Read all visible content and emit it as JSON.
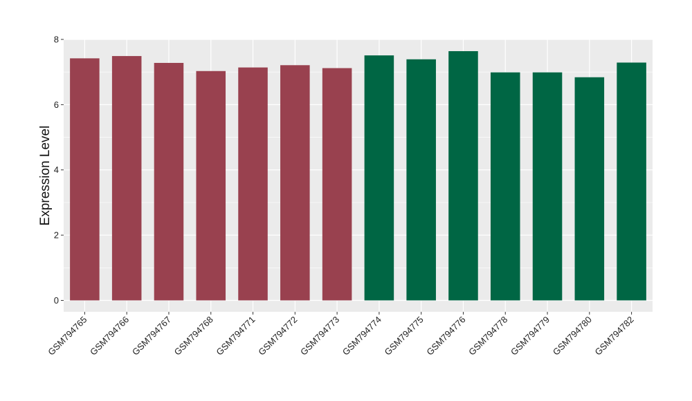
{
  "chart_data": {
    "type": "bar",
    "title": "",
    "xlabel": "",
    "ylabel": "Expression Level",
    "ylim": [
      -0.35,
      8.0
    ],
    "yticks": [
      0,
      2,
      4,
      6,
      8
    ],
    "grid": true,
    "legend": "none",
    "background_color": "#ebebeb",
    "grid_color": "#ffffff",
    "categories": [
      "GSM794765",
      "GSM794766",
      "GSM794767",
      "GSM794768",
      "GSM794771",
      "GSM794772",
      "GSM794773",
      "GSM794774",
      "GSM794775",
      "GSM794776",
      "GSM794778",
      "GSM794779",
      "GSM794780",
      "GSM794782"
    ],
    "values": [
      7.42,
      7.49,
      7.28,
      7.03,
      7.14,
      7.21,
      7.12,
      7.51,
      7.39,
      7.64,
      6.99,
      6.99,
      6.84,
      7.29
    ],
    "bar_colors": [
      "#99414f",
      "#99414f",
      "#99414f",
      "#99414f",
      "#99414f",
      "#99414f",
      "#99414f",
      "#006644",
      "#006644",
      "#006644",
      "#006644",
      "#006644",
      "#006644",
      "#006644"
    ]
  }
}
